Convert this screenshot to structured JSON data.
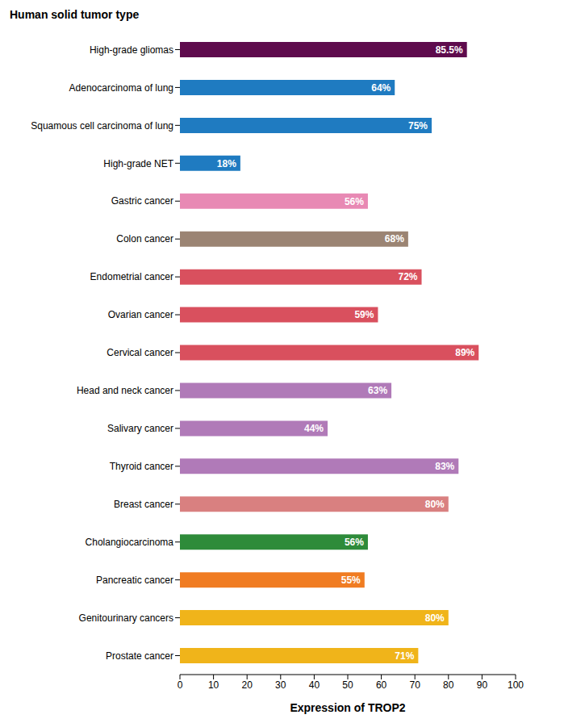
{
  "chart_data": {
    "type": "bar",
    "orientation": "horizontal",
    "title": "Human solid tumor type",
    "xlabel": "Expression of TROP2",
    "categories": [
      "High-grade gliomas",
      "Adenocarcinoma of lung",
      "Squamous cell carcinoma of lung",
      "High-grade NET",
      "Gastric cancer",
      "Colon cancer",
      "Endometrial cancer",
      "Ovarian cancer",
      "Cervical cancer",
      "Head and neck cancer",
      "Salivary cancer",
      "Thyroid cancer",
      "Breast cancer",
      "Cholangiocarcinoma",
      "Pancreatic cancer",
      "Genitourinary cancers",
      "Prostate cancer"
    ],
    "values": [
      85.5,
      64,
      75,
      18,
      56,
      68,
      72,
      59,
      89,
      63,
      44,
      83,
      80,
      56,
      55,
      80,
      71
    ],
    "value_labels": [
      "85.5%",
      "64%",
      "75%",
      "18%",
      "56%",
      "68%",
      "72%",
      "59%",
      "89%",
      "63%",
      "44%",
      "83%",
      "80%",
      "56%",
      "55%",
      "80%",
      "71%"
    ],
    "colors": [
      "#5e0b4d",
      "#1f7bc1",
      "#1f7bc1",
      "#1f7bc1",
      "#e889b4",
      "#9b8473",
      "#d9505e",
      "#d9505e",
      "#d9505e",
      "#b07ab8",
      "#b07ab8",
      "#b07ab8",
      "#d98080",
      "#2e8b3a",
      "#f07c22",
      "#f0b41a",
      "#f0b41a"
    ],
    "xlim": [
      0,
      100
    ],
    "xticks": [
      0,
      10,
      20,
      30,
      40,
      50,
      60,
      70,
      80,
      90,
      100
    ],
    "data_labels": true,
    "grid": false
  }
}
